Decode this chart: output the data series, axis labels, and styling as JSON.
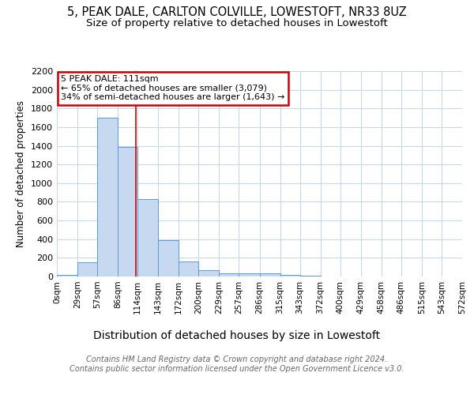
{
  "title1": "5, PEAK DALE, CARLTON COLVILLE, LOWESTOFT, NR33 8UZ",
  "title2": "Size of property relative to detached houses in Lowestoft",
  "xlabel": "Distribution of detached houses by size in Lowestoft",
  "ylabel": "Number of detached properties",
  "bin_edges": [
    0,
    29,
    57,
    86,
    114,
    143,
    172,
    200,
    229,
    257,
    286,
    315,
    343,
    372,
    400,
    429,
    458,
    486,
    515,
    543,
    572
  ],
  "bar_heights": [
    20,
    155,
    1700,
    1390,
    830,
    390,
    165,
    70,
    35,
    30,
    30,
    15,
    10,
    0,
    0,
    0,
    0,
    0,
    0,
    0
  ],
  "bar_color": "#c6d9f0",
  "bar_edge_color": "#5b9bd5",
  "property_sqm": 111,
  "property_line_color": "#cc0000",
  "annotation_line1": "5 PEAK DALE: 111sqm",
  "annotation_line2": "← 65% of detached houses are smaller (3,079)",
  "annotation_line3": "34% of semi-detached houses are larger (1,643) →",
  "annotation_box_color": "#cc0000",
  "ylim": [
    0,
    2200
  ],
  "yticks": [
    0,
    200,
    400,
    600,
    800,
    1000,
    1200,
    1400,
    1600,
    1800,
    2000,
    2200
  ],
  "bg_color": "#ffffff",
  "grid_color": "#c8d8e8",
  "footer_line1": "Contains HM Land Registry data © Crown copyright and database right 2024.",
  "footer_line2": "Contains public sector information licensed under the Open Government Licence v3.0.",
  "title1_fontsize": 10.5,
  "title2_fontsize": 9.5,
  "xlabel_fontsize": 10,
  "ylabel_fontsize": 8.5,
  "footer_fontsize": 7,
  "annotation_fontsize": 8,
  "tick_fontsize": 7.5,
  "ytick_fontsize": 8
}
